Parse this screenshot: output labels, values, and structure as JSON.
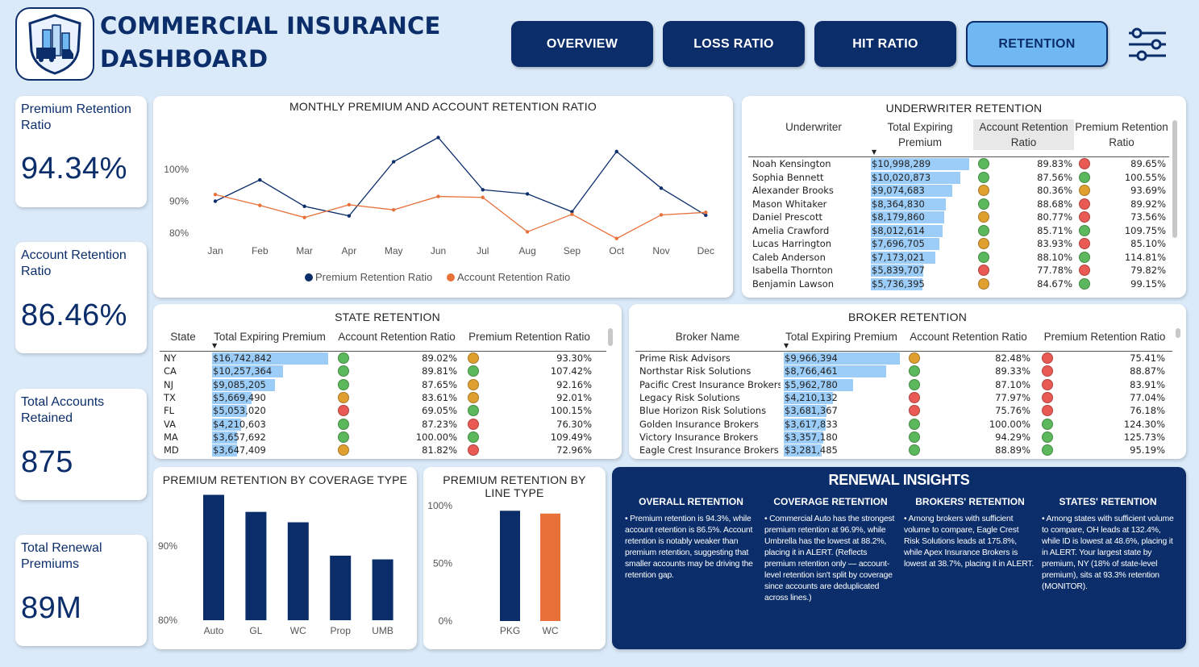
{
  "header": {
    "title_line1": "COMMERCIAL INSURANCE",
    "title_line2": "DASHBOARD",
    "nav": [
      {
        "label": "OVERVIEW",
        "active": false
      },
      {
        "label": "LOSS RATIO",
        "active": false
      },
      {
        "label": "HIT RATIO",
        "active": false
      },
      {
        "label": "RETENTION",
        "active": true
      }
    ],
    "filter_icon": "sliders-icon",
    "logo_icon": "insurance-shield-logo"
  },
  "kpis": [
    {
      "label": "Premium Retention Ratio",
      "value": "94.34%"
    },
    {
      "label": "Account Retention Ratio",
      "value": "86.46%"
    },
    {
      "label": "Total Accounts Retained",
      "value": "875"
    },
    {
      "label": "Total Renewal Premiums",
      "value": "89M"
    }
  ],
  "colors": {
    "navy": "#0b2e6b",
    "accent_light": "#6fb8f2",
    "bar_light": "#9ccdf8",
    "orange": "#e8713a",
    "green": "#5cb85c",
    "amber": "#e0a030",
    "red": "#ea5a55"
  },
  "monthly_chart": {
    "title": "MONTHLY PREMIUM AND ACCOUNT RETENTION RATIO",
    "legend": [
      "Premium Retention Ratio",
      "Account Retention Ratio"
    ]
  },
  "underwriter": {
    "title": "UNDERWRITER RETENTION",
    "headers": [
      "Underwriter",
      "Total Expiring Premium",
      "Account Retention Ratio",
      "Premium Retention Ratio"
    ],
    "max_premium": 10998289,
    "rows": [
      {
        "name": "Noah Kensington",
        "premium": "$10,998,289",
        "premium_value": 10998289,
        "acct": "89.83%",
        "acct_status": "green",
        "prem": "89.65%",
        "prem_status": "red"
      },
      {
        "name": "Sophia Bennett",
        "premium": "$10,020,873",
        "premium_value": 10020873,
        "acct": "87.56%",
        "acct_status": "green",
        "prem": "100.55%",
        "prem_status": "green"
      },
      {
        "name": "Alexander Brooks",
        "premium": "$9,074,683",
        "premium_value": 9074683,
        "acct": "80.36%",
        "acct_status": "amber",
        "prem": "93.69%",
        "prem_status": "amber"
      },
      {
        "name": "Mason Whitaker",
        "premium": "$8,364,830",
        "premium_value": 8364830,
        "acct": "88.68%",
        "acct_status": "green",
        "prem": "89.92%",
        "prem_status": "red"
      },
      {
        "name": "Daniel Prescott",
        "premium": "$8,179,860",
        "premium_value": 8179860,
        "acct": "80.77%",
        "acct_status": "amber",
        "prem": "73.56%",
        "prem_status": "red"
      },
      {
        "name": "Amelia Crawford",
        "premium": "$8,012,614",
        "premium_value": 8012614,
        "acct": "85.71%",
        "acct_status": "green",
        "prem": "109.75%",
        "prem_status": "green"
      },
      {
        "name": "Lucas Harrington",
        "premium": "$7,696,705",
        "premium_value": 7696705,
        "acct": "83.93%",
        "acct_status": "amber",
        "prem": "85.10%",
        "prem_status": "red"
      },
      {
        "name": "Caleb Anderson",
        "premium": "$7,173,021",
        "premium_value": 7173021,
        "acct": "88.10%",
        "acct_status": "green",
        "prem": "114.81%",
        "prem_status": "green"
      },
      {
        "name": "Isabella Thornton",
        "premium": "$5,839,707",
        "premium_value": 5839707,
        "acct": "77.78%",
        "acct_status": "red",
        "prem": "79.82%",
        "prem_status": "red"
      },
      {
        "name": "Benjamin Lawson",
        "premium": "$5,736,395",
        "premium_value": 5736395,
        "acct": "84.67%",
        "acct_status": "amber",
        "prem": "99.15%",
        "prem_status": "green"
      }
    ]
  },
  "state": {
    "title": "STATE RETENTION",
    "headers": [
      "State",
      "Total Expiring Premium",
      "Account Retention Ratio",
      "Premium Retention Ratio"
    ],
    "max_premium": 16742842,
    "rows": [
      {
        "name": "NY",
        "premium": "$16,742,842",
        "premium_value": 16742842,
        "acct": "89.02%",
        "acct_status": "green",
        "prem": "93.30%",
        "prem_status": "amber"
      },
      {
        "name": "CA",
        "premium": "$10,257,364",
        "premium_value": 10257364,
        "acct": "89.81%",
        "acct_status": "green",
        "prem": "107.42%",
        "prem_status": "green"
      },
      {
        "name": "NJ",
        "premium": "$9,085,205",
        "premium_value": 9085205,
        "acct": "87.65%",
        "acct_status": "green",
        "prem": "92.16%",
        "prem_status": "amber"
      },
      {
        "name": "TX",
        "premium": "$5,669,490",
        "premium_value": 5669490,
        "acct": "83.61%",
        "acct_status": "amber",
        "prem": "92.01%",
        "prem_status": "amber"
      },
      {
        "name": "FL",
        "premium": "$5,053,020",
        "premium_value": 5053020,
        "acct": "69.05%",
        "acct_status": "red",
        "prem": "100.15%",
        "prem_status": "green"
      },
      {
        "name": "VA",
        "premium": "$4,210,603",
        "premium_value": 4210603,
        "acct": "87.23%",
        "acct_status": "green",
        "prem": "76.30%",
        "prem_status": "red"
      },
      {
        "name": "MA",
        "premium": "$3,657,692",
        "premium_value": 3657692,
        "acct": "100.00%",
        "acct_status": "green",
        "prem": "109.49%",
        "prem_status": "green"
      },
      {
        "name": "MD",
        "premium": "$3,647,409",
        "premium_value": 3647409,
        "acct": "81.82%",
        "acct_status": "amber",
        "prem": "72.96%",
        "prem_status": "red"
      }
    ]
  },
  "broker": {
    "title": "BROKER RETENTION",
    "headers": [
      "Broker Name",
      "Total Expiring Premium",
      "Account Retention Ratio",
      "Premium Retention Ratio"
    ],
    "max_premium": 9966394,
    "rows": [
      {
        "name": "Prime Risk Advisors",
        "premium": "$9,966,394",
        "premium_value": 9966394,
        "acct": "82.48%",
        "acct_status": "amber",
        "prem": "75.41%",
        "prem_status": "red"
      },
      {
        "name": "Northstar Risk Solutions",
        "premium": "$8,766,461",
        "premium_value": 8766461,
        "acct": "89.33%",
        "acct_status": "green",
        "prem": "88.87%",
        "prem_status": "red"
      },
      {
        "name": "Pacific Crest Insurance Brokers",
        "premium": "$5,962,780",
        "premium_value": 5962780,
        "acct": "87.10%",
        "acct_status": "green",
        "prem": "83.91%",
        "prem_status": "red"
      },
      {
        "name": "Legacy Risk Solutions",
        "premium": "$4,210,132",
        "premium_value": 4210132,
        "acct": "77.97%",
        "acct_status": "red",
        "prem": "77.04%",
        "prem_status": "red"
      },
      {
        "name": "Blue Horizon Risk Solutions",
        "premium": "$3,681,367",
        "premium_value": 3681367,
        "acct": "75.76%",
        "acct_status": "red",
        "prem": "76.18%",
        "prem_status": "red"
      },
      {
        "name": "Golden Insurance Brokers",
        "premium": "$3,617,833",
        "premium_value": 3617833,
        "acct": "100.00%",
        "acct_status": "green",
        "prem": "124.30%",
        "prem_status": "green"
      },
      {
        "name": "Victory Insurance Brokers",
        "premium": "$3,357,180",
        "premium_value": 3357180,
        "acct": "94.29%",
        "acct_status": "green",
        "prem": "125.73%",
        "prem_status": "green"
      },
      {
        "name": "Eagle Crest Insurance Brokers",
        "premium": "$3,281,485",
        "premium_value": 3281485,
        "acct": "88.89%",
        "acct_status": "green",
        "prem": "95.19%",
        "prem_status": "green"
      }
    ]
  },
  "coverage_chart": {
    "title": "PREMIUM RETENTION BY COVERAGE TYPE"
  },
  "line_chart": {
    "title": "PREMIUM RETENTION BY LINE TYPE"
  },
  "insights": {
    "title": "RENEWAL INSIGHTS",
    "columns": [
      {
        "heading": "OVERALL RETENTION",
        "text": "• Premium retention is 94.3%, while account retention is 86.5%. Account retention is notably weaker than premium retention, suggesting that smaller accounts may be driving the retention gap."
      },
      {
        "heading": "COVERAGE RETENTION",
        "text": "• Commercial Auto has the strongest premium retention at 96.9%, while Umbrella has the lowest at 88.2%, placing it in ALERT. (Reflects premium retention only — account-level retention isn't split by coverage since accounts are deduplicated across lines.)"
      },
      {
        "heading": "BROKERS' RETENTION",
        "text": "• Among brokers with sufficient volume to compare, Eagle Crest Risk Solutions leads at 175.8%, while Apex Insurance Brokers is lowest at 38.7%, placing it in ALERT."
      },
      {
        "heading": "STATES' RETENTION",
        "text": "• Among states with sufficient volume to compare, OH leads at 132.4%, while ID is lowest at 48.6%, placing it in ALERT. Your largest state by premium, NY (18% of state-level premium), sits at 93.3% retention (MONITOR)."
      }
    ]
  },
  "chart_data": [
    {
      "type": "line",
      "title": "MONTHLY PREMIUM AND ACCOUNT RETENTION RATIO",
      "x": [
        "Jan",
        "Feb",
        "Mar",
        "Apr",
        "May",
        "Jun",
        "Jul",
        "Aug",
        "Sep",
        "Oct",
        "Nov",
        "Dec"
      ],
      "yticks": [
        "80%",
        "90%",
        "100%"
      ],
      "ylim": [
        77,
        111
      ],
      "series": [
        {
          "name": "Premium Retention Ratio",
          "color": "#0b2e6b",
          "values": [
            90.0,
            96.7,
            88.4,
            85.4,
            102.4,
            110.0,
            93.6,
            92.3,
            86.7,
            105.6,
            94.1,
            85.6
          ]
        },
        {
          "name": "Account Retention Ratio",
          "color": "#e8713a",
          "values": [
            92.1,
            88.7,
            84.9,
            88.9,
            87.3,
            91.5,
            91.2,
            80.4,
            85.9,
            78.3,
            85.7,
            86.5
          ]
        }
      ],
      "legend_position": "bottom"
    },
    {
      "type": "bar",
      "title": "PREMIUM RETENTION BY COVERAGE TYPE",
      "categories": [
        "Auto",
        "GL",
        "WC",
        "Prop",
        "UMB"
      ],
      "values": [
        96.9,
        94.6,
        93.2,
        88.7,
        88.2
      ],
      "yticks": [
        "80%",
        "90%"
      ],
      "ylim": [
        80,
        98
      ],
      "color": "#0b2e6b"
    },
    {
      "type": "bar",
      "title": "PREMIUM RETENTION BY LINE TYPE",
      "categories": [
        "PKG",
        "WC"
      ],
      "values": [
        95.6,
        93.2
      ],
      "colors": [
        "#0b2e6b",
        "#e8713a"
      ],
      "yticks": [
        "0%",
        "50%",
        "100%"
      ],
      "ylim": [
        0,
        100
      ]
    }
  ]
}
